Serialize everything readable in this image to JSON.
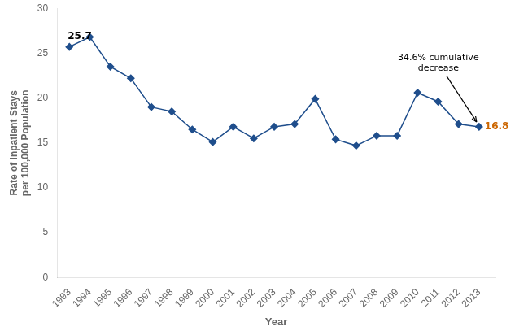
{
  "chart_data": {
    "type": "line",
    "x": [
      1993,
      1994,
      1995,
      1996,
      1997,
      1998,
      1999,
      2000,
      2001,
      2002,
      2003,
      2004,
      2005,
      2006,
      2007,
      2008,
      2009,
      2010,
      2011,
      2012,
      2013
    ],
    "values": [
      25.7,
      26.8,
      23.5,
      22.2,
      19.0,
      18.5,
      16.5,
      15.1,
      16.8,
      15.5,
      16.8,
      17.1,
      19.9,
      15.4,
      14.7,
      15.8,
      15.8,
      20.6,
      19.6,
      17.1,
      16.8
    ],
    "color": "#1F4E8C",
    "marker": "diamond",
    "xlabel": "Year",
    "ylabel": "Rate of Inpatient Stays\nper 100,000 Population",
    "xlim": [
      1992.4,
      2013.8
    ],
    "xticks": [
      1993,
      1994,
      1995,
      1996,
      1997,
      1998,
      1999,
      2000,
      2001,
      2002,
      2003,
      2004,
      2005,
      2006,
      2007,
      2008,
      2009,
      2010,
      2011,
      2012,
      2013
    ],
    "ylim": [
      0,
      30
    ],
    "yticks": [
      0,
      5,
      10,
      15,
      20,
      25,
      30
    ],
    "grid": false,
    "annotations": [
      {
        "text": "25.7",
        "x": 1993,
        "y": 25.7,
        "color": "#000000"
      },
      {
        "text": "16.8",
        "x": 2013,
        "y": 16.8,
        "color": "#CC6600"
      },
      {
        "text": "34.6% cumulative\ndecrease",
        "x": 2013,
        "y": 16.8,
        "color": "#000000",
        "arrow": true
      }
    ]
  }
}
